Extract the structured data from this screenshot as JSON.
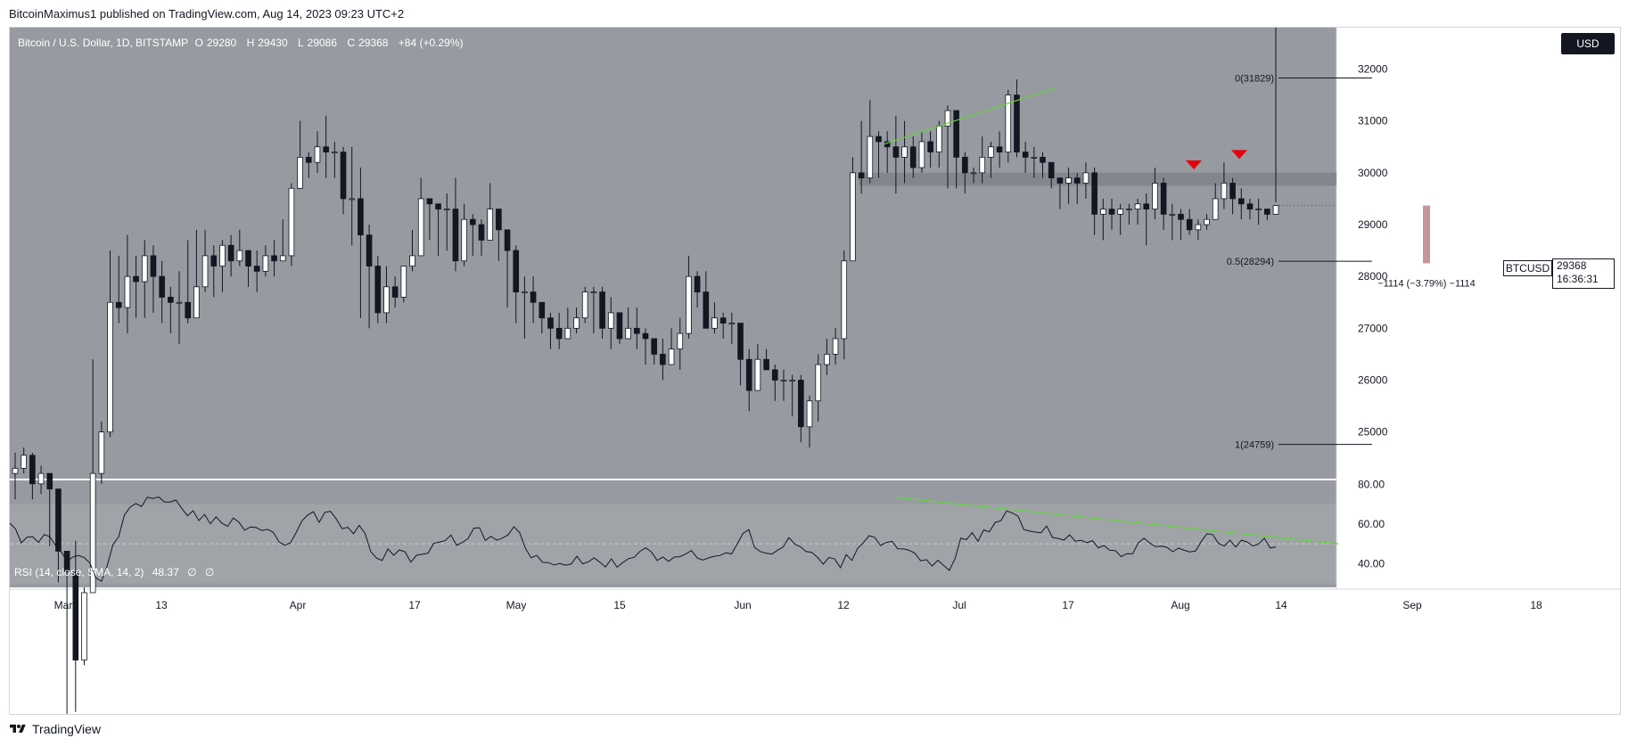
{
  "publisher": "BitcoinMaximus1 published on TradingView.com, Aug 14, 2023 09:23 UTC+2",
  "footer_brand": "TradingView",
  "legend": {
    "title": "Bitcoin / U.S. Dollar, 1D, BITSTAMP",
    "open_label": "O",
    "open": "29280",
    "high_label": "H",
    "high": "29430",
    "low_label": "L",
    "low": "29086",
    "close_label": "C",
    "close": "29368",
    "change": "+84 (+0.29%)"
  },
  "currency_button": "USD",
  "symbol_tag": "BTCUSD",
  "price_tag": {
    "price": "29368",
    "countdown": "16:36:31"
  },
  "rsi_legend": {
    "title": "RSI (14, close, SMA, 14, 2)",
    "value": "48.37",
    "extra1": "∅",
    "extra2": "∅"
  },
  "measure_label": "−1114 (−3.79%) −1114",
  "colors": {
    "background": "#979aa0",
    "rsi_band": "#a0a3a8",
    "up_candle": "#ffffff",
    "down_candle": "#131722",
    "trendline": "#62d53b",
    "marker": "#e5000a",
    "measure_bar": "#c79498",
    "zone": "#7e8188"
  },
  "chart_data": {
    "type": "candlestick",
    "title": "Bitcoin / U.S. Dollar, 1D, BITSTAMP",
    "price_range": [
      24100,
      32800
    ],
    "price_ticks": [
      25000,
      26000,
      27000,
      28000,
      29000,
      30000,
      31000,
      32000
    ],
    "price_tick_labels": [
      "25000",
      "26000",
      "27000",
      "28000",
      "29000",
      "30000",
      "31000",
      "32000"
    ],
    "date_ticks": [
      "Mar",
      "13",
      "Apr",
      "17",
      "May",
      "15",
      "Jun",
      "12",
      "Jul",
      "17",
      "Aug",
      "14",
      "Sep",
      "18"
    ],
    "closes": [
      24300,
      24550,
      24000,
      24200,
      23900,
      22700,
      22300,
      20600,
      21900,
      24200,
      25000,
      27500,
      27400,
      28000,
      27900,
      28400,
      28000,
      27600,
      27500,
      27500,
      27200,
      27800,
      28400,
      28200,
      28600,
      28300,
      28500,
      28200,
      28100,
      28400,
      28300,
      28400,
      29700,
      30300,
      30200,
      30500,
      30400,
      30400,
      29500,
      29500,
      28800,
      28200,
      27300,
      27800,
      27600,
      28200,
      28400,
      29500,
      29400,
      29300,
      29300,
      28300,
      29100,
      29000,
      28700,
      29300,
      28900,
      28500,
      27700,
      27700,
      27500,
      27200,
      27000,
      26800,
      27000,
      27200,
      27700,
      27700,
      27000,
      27300,
      26800,
      27000,
      26900,
      26800,
      26500,
      26300,
      26600,
      26900,
      28000,
      27700,
      27000,
      27200,
      27100,
      27100,
      26400,
      25800,
      26400,
      26200,
      26000,
      26000,
      26000,
      25100,
      25600,
      26300,
      26500,
      26800,
      28300,
      30000,
      29900,
      30700,
      30600,
      30500,
      30300,
      30500,
      30100,
      30600,
      30400,
      30900,
      31200,
      30300,
      30000,
      30000,
      30300,
      30500,
      30400,
      31500,
      30400,
      30300,
      30300,
      30200,
      29900,
      29800,
      29900,
      29800,
      30000,
      29200,
      29300,
      29200,
      29300,
      29300,
      29400,
      29300,
      29800,
      29200,
      29200,
      29100,
      28900,
      29000,
      29100,
      29500,
      29800,
      29500,
      29400,
      29300,
      29300,
      29200,
      29368
    ],
    "highs": [
      24600,
      24700,
      24600,
      24350,
      24200,
      23400,
      22700,
      22900,
      22000,
      26400,
      25200,
      28500,
      28400,
      28800,
      28400,
      28700,
      28600,
      28300,
      27800,
      28100,
      28700,
      28900,
      28900,
      28600,
      28700,
      28800,
      28900,
      28500,
      28500,
      28600,
      28700,
      29100,
      29800,
      31000,
      30400,
      30800,
      31100,
      30600,
      30500,
      30500,
      30100,
      29000,
      28400,
      28200,
      28000,
      28200,
      28900,
      29900,
      29500,
      29400,
      29600,
      29900,
      29400,
      29200,
      29100,
      29800,
      29300,
      28700,
      28600,
      28000,
      28000,
      27500,
      27300,
      27300,
      27400,
      27400,
      27800,
      27800,
      27800,
      27600,
      27300,
      27400,
      27400,
      27000,
      26800,
      26800,
      27000,
      27200,
      28400,
      28100,
      28100,
      27500,
      27300,
      27300,
      27100,
      26600,
      26700,
      26600,
      26300,
      26200,
      26100,
      26100,
      25700,
      26500,
      26800,
      27000,
      28500,
      30300,
      31000,
      31400,
      30800,
      30800,
      31100,
      31000,
      30700,
      30800,
      30800,
      31000,
      31300,
      31100,
      30400,
      30100,
      30700,
      30600,
      30800,
      31600,
      31800,
      30600,
      30500,
      30400,
      30200,
      29900,
      30100,
      30000,
      30200,
      30100,
      29500,
      29500,
      29400,
      29400,
      29500,
      29600,
      30100,
      29900,
      29400,
      29300,
      29300,
      29100,
      29200,
      29800,
      30200,
      29900,
      29700,
      29500,
      29500,
      29300,
      29430
    ],
    "lows": [
      23700,
      24200,
      23700,
      23800,
      22800,
      22100,
      19500,
      19600,
      20500,
      21900,
      24000,
      24900,
      27100,
      26900,
      27200,
      27200,
      27300,
      27100,
      26900,
      26700,
      27100,
      27600,
      27700,
      27600,
      27700,
      28000,
      28200,
      27800,
      27700,
      28000,
      28000,
      28300,
      28200,
      29700,
      29900,
      30000,
      29900,
      29900,
      29200,
      28600,
      27200,
      27000,
      27100,
      27100,
      27400,
      27500,
      28100,
      28700,
      28700,
      28400,
      28500,
      28100,
      28200,
      28400,
      28400,
      28900,
      28300,
      27400,
      27100,
      26800,
      27100,
      26900,
      26600,
      26600,
      26900,
      26900,
      27100,
      26900,
      26800,
      26600,
      26700,
      26800,
      26600,
      26300,
      26300,
      26000,
      26300,
      26200,
      26800,
      27400,
      27000,
      26900,
      26800,
      26700,
      25900,
      25400,
      25800,
      26200,
      25600,
      25600,
      25300,
      24800,
      24700,
      25200,
      26100,
      26300,
      26400,
      28300,
      29600,
      29800,
      29900,
      30000,
      29600,
      29800,
      29900,
      30000,
      30100,
      30100,
      29700,
      29700,
      29600,
      29800,
      29800,
      29900,
      30100,
      30200,
      30300,
      30000,
      29900,
      29900,
      29700,
      29300,
      29400,
      29400,
      29500,
      28800,
      28700,
      28900,
      28800,
      29000,
      29000,
      28600,
      29100,
      28900,
      28700,
      28700,
      28800,
      28700,
      28900,
      29100,
      29300,
      29200,
      29100,
      29100,
      29000,
      29086
    ],
    "rsi": [
      60.4,
      57.5,
      50.5,
      53.4,
      53.5,
      50.7,
      54.7,
      53.6,
      49.1,
      45.9,
      41.3,
      43.3,
      44.1,
      43.0,
      40.2,
      32.8,
      31.0,
      38.9,
      49.6,
      53.5,
      64.5,
      68.5,
      70.3,
      68.8,
      73.5,
      72.9,
      73.6,
      71.1,
      71.1,
      72.1,
      67.9,
      64.2,
      66.7,
      61.7,
      64.8,
      60.1,
      63.6,
      60.5,
      58.8,
      63.0,
      60.9,
      56.8,
      58.5,
      58.2,
      56.7,
      57.3,
      55.7,
      50.9,
      49.3,
      50.5,
      55.7,
      61.6,
      64.5,
      66.2,
      60.8,
      65.9,
      66.4,
      62.5,
      57.6,
      58.3,
      55.1,
      59.3,
      55.3,
      46.1,
      42.8,
      41.6,
      47.4,
      44.2,
      46.9,
      45.9,
      40.7,
      44.2,
      44.7,
      45.2,
      50.2,
      50.9,
      51.6,
      54.4,
      49.2,
      50.7,
      52.7,
      57.9,
      58.1,
      51.7,
      53.8,
      51.8,
      52.9,
      54.5,
      58.6,
      55.6,
      47.7,
      43.0,
      44.1,
      40.6,
      40.5,
      39.3,
      40.0,
      39.2,
      39.8,
      43.7,
      39.9,
      40.9,
      42.9,
      40.7,
      38.3,
      42.4,
      38.2,
      40.5,
      42.5,
      43.2,
      46.2,
      48.0,
      45.9,
      41.6,
      43.3,
      41.1,
      43.3,
      43.5,
      44.9,
      46.6,
      42.8,
      41.8,
      42.9,
      43.7,
      44.1,
      45.4,
      44.9,
      50.0,
      55.3,
      57.1,
      48.2,
      46.1,
      45.3,
      44.8,
      46.7,
      48.4,
      53.1,
      49.9,
      48.5,
      46.1,
      45.7,
      43.1,
      39.7,
      43.1,
      42.3,
      37.9,
      44.5,
      41.6,
      47.7,
      50.6,
      54.1,
      53.2,
      49.1,
      50.7,
      51.2,
      47.5,
      47.4,
      46.7,
      45.2,
      41.4,
      42.0,
      38.8,
      41.7,
      39.1,
      36.6,
      42.5,
      52.8,
      52.1,
      55.6,
      51.2,
      57.0,
      56.1,
      60.8,
      61.6,
      66.5,
      65.6,
      63.9,
      57.2,
      56.4,
      55.9,
      55.6,
      59.0,
      53.2,
      52.7,
      51.9,
      54.5,
      51.3,
      51.7,
      50.6,
      51.6,
      48.0,
      49.1,
      46.7,
      46.6,
      43.5,
      45.0,
      44.9,
      50.5,
      52.8,
      50.4,
      48.5,
      48.8,
      48.2,
      46.0,
      47.8,
      46.7,
      45.9,
      46.3,
      51.3,
      55.1,
      54.6,
      50.2,
      48.9,
      51.8,
      48.4,
      51.8,
      50.9,
      48.9,
      49.9,
      52.8,
      47.9,
      48.37
    ],
    "rsi_range": [
      28,
      82
    ],
    "rsi_ticks": [
      40,
      60,
      80
    ],
    "rsi_tick_labels": [
      "40.00",
      "60.00",
      "80.00"
    ],
    "rsi_band": [
      30,
      70
    ],
    "rsi_midline": 50,
    "fib_levels": [
      {
        "label": "0(31829)",
        "price": 31829
      },
      {
        "label": "0.5(28294)",
        "price": 28294
      },
      {
        "label": "1(24759)",
        "price": 24759
      }
    ],
    "zone": [
      29750,
      30000
    ],
    "measure": {
      "from": 29368,
      "to": 28254
    },
    "last_price": 29368
  }
}
